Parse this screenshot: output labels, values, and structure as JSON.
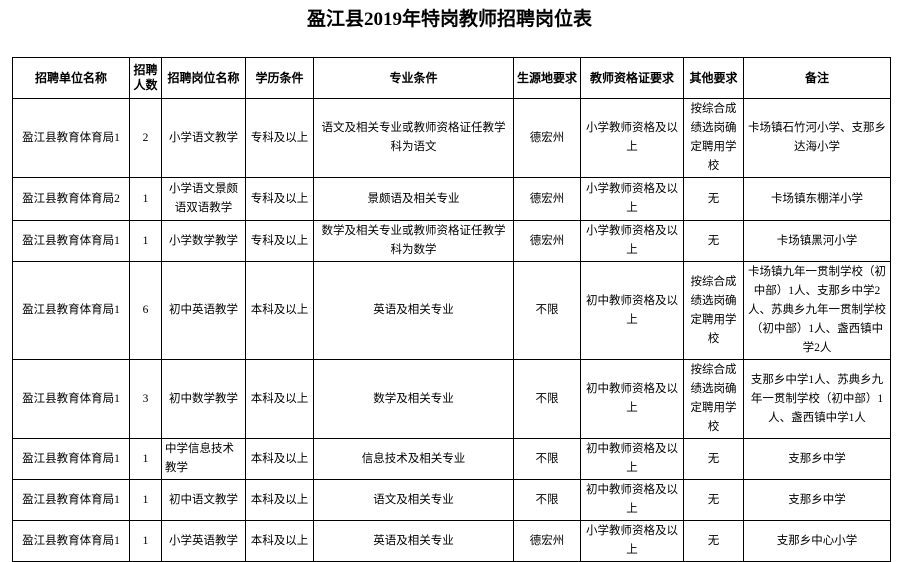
{
  "title": "盈江县2019年特岗教师招聘岗位表",
  "table": {
    "header": [
      "招聘单位名称",
      "招聘人数",
      "招聘岗位名称",
      "学历条件",
      "专业条件",
      "生源地要求",
      "教师资格证要求",
      "其他要求",
      "备注"
    ],
    "rows": [
      [
        "盈江县教育体育局1",
        2,
        "小学语文教学",
        "专科及以上",
        "语文及相关专业或教师资格证任教学科为语文",
        "德宏州",
        "小学教师资格及以上",
        "按综合成绩选岗确定聘用学校",
        "卡场镇石竹河小学、支那乡达海小学"
      ],
      [
        "盈江县教育体育局2",
        1,
        "小学语文景颇语双语教学",
        "专科及以上",
        "景颇语及相关专业",
        "德宏州",
        "小学教师资格及以上",
        "无",
        "卡场镇东棚洋小学"
      ],
      [
        "盈江县教育体育局1",
        1,
        "小学数学教学",
        "专科及以上",
        "数学及相关专业或教师资格证任教学科为数学",
        "德宏州",
        "小学教师资格及以上",
        "无",
        "卡场镇黑河小学"
      ],
      [
        "盈江县教育体育局1",
        6,
        "初中英语教学",
        "本科及以上",
        "英语及相关专业",
        "不限",
        "初中教师资格及以上",
        "按综合成绩选岗确定聘用学校",
        "卡场镇九年一贯制学校（初中部）1人、支那乡中学2人、苏典乡九年一贯制学校（初中部）1人、盏西镇中学2人"
      ],
      [
        "盈江县教育体育局1",
        3,
        "初中数学教学",
        "本科及以上",
        "数学及相关专业",
        "不限",
        "初中教师资格及以上",
        "按综合成绩选岗确定聘用学校",
        "支那乡中学1人、苏典乡九年一贯制学校（初中部）1人、盏西镇中学1人"
      ],
      [
        "盈江县教育体育局1",
        1,
        "中学信息技术教学",
        "本科及以上",
        "信息技术及相关专业",
        "不限",
        "初中教师资格及以上",
        "无",
        "支那乡中学"
      ],
      [
        "盈江县教育体育局1",
        1,
        "初中语文教学",
        "本科及以上",
        "语文及相关专业",
        "不限",
        "初中教师资格及以上",
        "无",
        "支那乡中学"
      ],
      [
        "盈江县教育体育局1",
        1,
        "小学英语教学",
        "本科及以上",
        "英语及相关专业",
        "德宏州",
        "小学教师资格及以上",
        "无",
        "支那乡中心小学"
      ]
    ]
  }
}
